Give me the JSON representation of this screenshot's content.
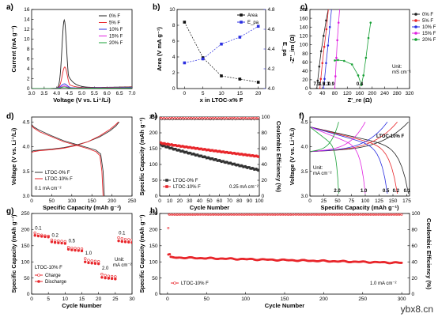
{
  "watermark": "ybx8.cn",
  "chart_data": [
    {
      "panel": "a",
      "type": "line",
      "xlabel": "Voltage (V vs. Li⁺/Li)",
      "ylabel": "Current (mA g⁻¹)",
      "xlim": [
        3.0,
        7.0
      ],
      "ylim": [
        0,
        16
      ],
      "xticks": [
        3.0,
        3.5,
        4.0,
        4.5,
        5.0,
        5.5,
        6.0,
        6.5,
        7.0
      ],
      "yticks": [
        0,
        2,
        4,
        6,
        8,
        10,
        12,
        14,
        16
      ],
      "legend_position": "top-right",
      "series": [
        {
          "name": "0% F",
          "color": "#222222",
          "peak": 4.3,
          "height": 13.8,
          "width": 0.09,
          "base": 0.35
        },
        {
          "name": "5% F",
          "color": "#e8262b",
          "peak": 4.32,
          "height": 4.3,
          "width": 0.1,
          "base": 0.3
        },
        {
          "name": "10% F",
          "color": "#2b2fe0",
          "peak": 4.3,
          "height": 0.9,
          "width": 0.12,
          "base": 0.25
        },
        {
          "name": "15% F",
          "color": "#e020e0",
          "peak": 4.3,
          "height": 0.5,
          "width": 0.12,
          "base": 0.2
        },
        {
          "name": "20% F",
          "color": "#17a035",
          "peak": 4.3,
          "height": 0.3,
          "width": 0.12,
          "base": 0.15
        }
      ]
    },
    {
      "panel": "b",
      "type": "scatter",
      "xlabel": "x in LTOC-x% F",
      "ylabel": "Area (V mA g⁻¹)",
      "y2label": "E_pa",
      "xlim": [
        -2,
        22
      ],
      "ylim": [
        0,
        10
      ],
      "y2lim": [
        4.0,
        4.8
      ],
      "xticks": [
        0,
        5,
        10,
        15,
        20
      ],
      "yticks": [
        0,
        2,
        4,
        6,
        8,
        10
      ],
      "y2ticks": [
        4.0,
        4.2,
        4.4,
        4.6,
        4.8
      ],
      "legend_position": "top-right",
      "series": [
        {
          "name": "Area",
          "color": "#111111",
          "axis": "left",
          "x": [
            0,
            5,
            10,
            15,
            20
          ],
          "values": [
            8.4,
            3.9,
            1.6,
            1.2,
            0.8
          ]
        },
        {
          "name": "E_pa",
          "color": "#2b2fe0",
          "axis": "right",
          "x": [
            0,
            5,
            10,
            15,
            20
          ],
          "values": [
            4.26,
            4.3,
            4.45,
            4.52,
            4.63
          ]
        }
      ]
    },
    {
      "panel": "c",
      "type": "line",
      "xlabel": "Z'_re (Ω)",
      "ylabel": "-Z''_im (Ω)",
      "xlim": [
        0,
        320
      ],
      "ylim": [
        0,
        180
      ],
      "xticks": [
        0,
        40,
        80,
        120,
        160,
        200,
        240,
        280,
        320
      ],
      "yticks": [
        0,
        20,
        40,
        60,
        80,
        100,
        120,
        140,
        160,
        180
      ],
      "legend_position": "right",
      "annotations": [
        "7.1",
        "4.5",
        "2.3",
        "0.9",
        "0.4"
      ],
      "unit_label": "Unit:",
      "unit_value": "mS cm⁻¹",
      "series": [
        {
          "name": "0% F",
          "color": "#222222",
          "x": [
            22,
            25,
            30,
            36,
            44,
            52,
            60
          ],
          "values": [
            0,
            18,
            50,
            85,
            120,
            155,
            185
          ]
        },
        {
          "name": "5% F",
          "color": "#e8262b",
          "x": [
            32,
            35,
            40,
            46,
            53,
            60
          ],
          "values": [
            0,
            22,
            58,
            95,
            135,
            185
          ]
        },
        {
          "name": "10% F",
          "color": "#2b2fe0",
          "x": [
            44,
            47,
            52,
            58,
            64,
            70
          ],
          "values": [
            0,
            22,
            58,
            98,
            140,
            185
          ]
        },
        {
          "name": "15% F",
          "color": "#e020e0",
          "x": [
            80,
            82,
            85,
            88,
            92,
            96
          ],
          "values": [
            0,
            28,
            70,
            110,
            150,
            185
          ]
        },
        {
          "name": "20% F",
          "color": "#17a035",
          "x": [
            80,
            90,
            110,
            135,
            155,
            165,
            172,
            180,
            188,
            195
          ],
          "values": [
            64,
            65,
            63,
            55,
            30,
            8,
            30,
            70,
            115,
            150
          ]
        }
      ]
    },
    {
      "panel": "d",
      "type": "line",
      "xlabel": "Specific Capacity (mAh g⁻¹)",
      "ylabel": "Voltage (V vs. Li⁺/Li)",
      "xlim": [
        0,
        250
      ],
      "ylim": [
        3.0,
        4.6
      ],
      "xticks": [
        0,
        50,
        100,
        150,
        200,
        250
      ],
      "yticks": [
        3.0,
        3.5,
        4.0,
        4.5
      ],
      "legend_position": "bottom-left",
      "current_label": "0.1 mA cm⁻²",
      "series": [
        {
          "name": "LTOC-0% F",
          "color": "#333333",
          "charge_x": [
            0,
            5,
            20,
            50,
            80,
            110,
            140,
            170,
            195,
            210,
            218
          ],
          "charge_y": [
            3.9,
            3.92,
            3.93,
            3.95,
            3.98,
            4.03,
            4.1,
            4.2,
            4.32,
            4.42,
            4.5
          ],
          "discharge_x": [
            0,
            5,
            20,
            50,
            80,
            110,
            140,
            160,
            172,
            178,
            181
          ],
          "discharge_y": [
            4.45,
            4.4,
            4.33,
            4.22,
            4.12,
            4.05,
            3.98,
            3.93,
            3.85,
            3.5,
            3.0
          ]
        },
        {
          "name": "LTOC-10% F",
          "color": "#e8262b",
          "charge_x": [
            0,
            5,
            20,
            50,
            80,
            110,
            140,
            170,
            195,
            210,
            216
          ],
          "charge_y": [
            3.88,
            3.9,
            3.92,
            3.94,
            3.97,
            4.02,
            4.1,
            4.22,
            4.35,
            4.45,
            4.5
          ],
          "discharge_x": [
            0,
            5,
            20,
            50,
            80,
            110,
            140,
            160,
            170,
            175,
            178
          ],
          "discharge_y": [
            4.43,
            4.38,
            4.3,
            4.2,
            4.1,
            4.03,
            3.96,
            3.9,
            3.82,
            3.5,
            3.0
          ]
        }
      ]
    },
    {
      "panel": "e",
      "type": "scatter",
      "xlabel": "Cycle Number",
      "ylabel": "Specific Capacity (mAh g⁻¹)",
      "y2label": "Coulombic Efficiency (%)",
      "xlim": [
        0,
        100
      ],
      "ylim": [
        0,
        250
      ],
      "y2lim": [
        0,
        100
      ],
      "xticks": [
        0,
        10,
        20,
        30,
        40,
        50,
        60,
        70,
        80,
        90,
        100
      ],
      "yticks": [
        0,
        50,
        100,
        150,
        200,
        250
      ],
      "y2ticks": [
        0,
        20,
        40,
        60,
        80,
        100
      ],
      "legend_position": "bottom-left",
      "current_label": "0.25 mA cm⁻²",
      "series": [
        {
          "name": "LTOC-0% F",
          "color": "#333333",
          "start": 162,
          "end": 82,
          "ce": 98
        },
        {
          "name": "LTOC-10% F",
          "color": "#e8262b",
          "start": 168,
          "end": 125,
          "ce": 99
        }
      ]
    },
    {
      "panel": "f",
      "type": "line",
      "xlabel": "Specific Capacity (mAh g⁻¹)",
      "ylabel": "Voltage (V vs. Li⁺/Li)",
      "xlim": [
        0,
        180
      ],
      "ylim": [
        3.0,
        4.6
      ],
      "xticks": [
        0,
        25,
        50,
        75,
        100,
        125,
        150,
        175
      ],
      "yticks": [
        3.0,
        3.5,
        4.0,
        4.5
      ],
      "title_label": "LTOC-10% F",
      "unit_label": "Unit:",
      "unit_value": "mA cm⁻²",
      "rates": [
        {
          "label": "0.1",
          "color": "#222222",
          "cap": 178
        },
        {
          "label": "0.2",
          "color": "#e8262b",
          "cap": 158
        },
        {
          "label": "0.5",
          "color": "#2b2fe0",
          "cap": 140
        },
        {
          "label": "1.0",
          "color": "#e020e0",
          "cap": 100
        },
        {
          "label": "2.0",
          "color": "#17a035",
          "cap": 52
        }
      ]
    },
    {
      "panel": "g",
      "type": "scatter",
      "xlabel": "Cycle Number",
      "ylabel": "Specific Capacity (mAh g⁻¹)",
      "xlim": [
        0,
        30
      ],
      "ylim": [
        0,
        250
      ],
      "xticks": [
        0,
        5,
        10,
        15,
        20,
        25,
        30
      ],
      "yticks": [
        0,
        50,
        100,
        150,
        200,
        250
      ],
      "series_title": "LTOC-10% F",
      "legend": [
        "Charge",
        "Discharge"
      ],
      "unit_label": "Unit:",
      "unit_value": "mA cm⁻²",
      "rates": [
        "0.1",
        "0.2",
        "0.5",
        "1.0",
        "2.0",
        "0.1"
      ],
      "charge": [
        190,
        185,
        183,
        181,
        180,
        168,
        166,
        165,
        164,
        163,
        145,
        143,
        142,
        141,
        140,
        110,
        105,
        103,
        102,
        101,
        62,
        58,
        56,
        55,
        54,
        175,
        172,
        170,
        169,
        168
      ],
      "discharge": [
        182,
        180,
        179,
        178,
        177,
        162,
        160,
        159,
        158,
        157,
        139,
        137,
        136,
        135,
        134,
        100,
        97,
        96,
        95,
        94,
        52,
        50,
        49,
        48,
        47,
        165,
        163,
        162,
        161,
        160
      ]
    },
    {
      "panel": "h",
      "type": "scatter",
      "xlabel": "Cycle Number",
      "ylabel": "Specific Capacity (mAh g⁻¹)",
      "y2label": "Coulombic Efficiency (%)",
      "xlim": [
        -10,
        310
      ],
      "ylim": [
        0,
        250
      ],
      "y2lim": [
        0,
        100
      ],
      "xticks": [
        0,
        50,
        100,
        150,
        200,
        250,
        300
      ],
      "yticks": [
        0,
        50,
        100,
        150,
        200,
        250
      ],
      "y2ticks": [
        0,
        20,
        40,
        60,
        80,
        100
      ],
      "legend_position": "bottom-left",
      "current_label": "1.0 mA cm⁻²",
      "series": [
        {
          "name": "LTOC-10% F",
          "color": "#e8262b",
          "start": 122,
          "end": 97,
          "ce": 99
        }
      ]
    }
  ]
}
